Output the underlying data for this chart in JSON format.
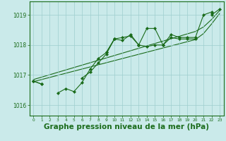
{
  "background_color": "#caeaea",
  "grid_color": "#9ecece",
  "line_color": "#1a6b1a",
  "xlabel": "Graphe pression niveau de la mer (hPa)",
  "xlabel_fontsize": 7.5,
  "ylim": [
    1015.65,
    1019.45
  ],
  "xlim": [
    -0.5,
    23.5
  ],
  "yticks": [
    1016,
    1017,
    1018,
    1019
  ],
  "xticks": [
    0,
    1,
    2,
    3,
    4,
    5,
    6,
    7,
    8,
    9,
    10,
    11,
    12,
    13,
    14,
    15,
    16,
    17,
    18,
    19,
    20,
    21,
    22,
    23
  ],
  "series1": [
    1016.8,
    1016.7,
    null,
    1016.4,
    1016.55,
    1016.45,
    1016.75,
    1017.2,
    1017.55,
    1017.75,
    1018.2,
    1018.15,
    1018.35,
    1018.0,
    1018.55,
    1018.55,
    1018.0,
    1018.35,
    1018.25,
    1018.25,
    1018.25,
    1019.0,
    1019.1,
    null
  ],
  "series2": [
    1016.8,
    null,
    null,
    null,
    null,
    null,
    1016.9,
    1017.1,
    1017.4,
    1017.7,
    1018.2,
    1018.25,
    1018.3,
    1018.0,
    1017.95,
    1018.0,
    1018.0,
    1018.25,
    1018.2,
    1018.2,
    1018.2,
    null,
    1019.05,
    null
  ],
  "series3": [
    1016.8,
    1016.7,
    null,
    null,
    null,
    null,
    null,
    null,
    null,
    1017.75,
    1018.2,
    null,
    null,
    1018.0,
    null,
    null,
    null,
    null,
    null,
    null,
    null,
    null,
    1019.0,
    1019.2
  ],
  "linear1": [
    1016.78,
    1016.85,
    1016.92,
    1016.99,
    1017.06,
    1017.13,
    1017.2,
    1017.27,
    1017.34,
    1017.41,
    1017.48,
    1017.55,
    1017.62,
    1017.69,
    1017.76,
    1017.83,
    1017.9,
    1017.97,
    1018.04,
    1018.11,
    1018.18,
    1018.38,
    1018.7,
    1019.05
  ],
  "linear2": [
    1016.85,
    1016.93,
    1017.01,
    1017.09,
    1017.17,
    1017.25,
    1017.33,
    1017.41,
    1017.49,
    1017.57,
    1017.65,
    1017.73,
    1017.81,
    1017.89,
    1017.97,
    1018.05,
    1018.13,
    1018.21,
    1018.29,
    1018.37,
    1018.45,
    1018.6,
    1018.85,
    1019.15
  ]
}
